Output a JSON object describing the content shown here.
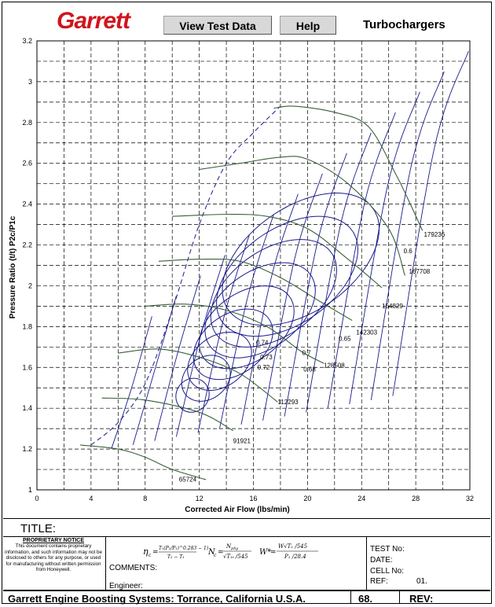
{
  "header": {
    "logo": "Garrett",
    "view_button": "View Test Data",
    "help_button": "Help",
    "product": "Turbochargers"
  },
  "colors": {
    "logo": "#d1141b",
    "speed_lines": "#3a5f3a",
    "efficiency_islands": "#1a1a8c",
    "grid": "#000000"
  },
  "chart_data": {
    "type": "line",
    "title": "",
    "xlabel": "Corrected Air Flow (lbs/min)",
    "ylabel": "Pressure Ratio (t/t) P2c/P1c",
    "xlim": [
      0,
      32
    ],
    "ylim": [
      1,
      3.2
    ],
    "x_ticks": [
      "0",
      "4",
      "8",
      "12",
      "16",
      "20",
      "24",
      "28",
      "32"
    ],
    "y_ticks": [
      "1",
      "1.2",
      "1.4",
      "1.6",
      "1.8",
      "2",
      "2.2",
      "2.4",
      "2.6",
      "2.8",
      "3",
      "3.2"
    ],
    "grid": true,
    "surge_line": [
      [
        4,
        1.22
      ],
      [
        6,
        1.33
      ],
      [
        8,
        1.52
      ],
      [
        10,
        1.88
      ],
      [
        12,
        2.3
      ],
      [
        14,
        2.6
      ],
      [
        16,
        2.75
      ],
      [
        18,
        2.88
      ]
    ],
    "speed_lines": [
      {
        "label": "65724",
        "points": [
          [
            3.2,
            1.22
          ],
          [
            6,
            1.2
          ],
          [
            8,
            1.16
          ],
          [
            10,
            1.1
          ],
          [
            12.5,
            1.05
          ]
        ],
        "label_at": [
          10.5,
          1.04
        ]
      },
      {
        "label": "91921",
        "points": [
          [
            4.8,
            1.45
          ],
          [
            8,
            1.44
          ],
          [
            12,
            1.38
          ],
          [
            14.5,
            1.29
          ]
        ],
        "label_at": [
          14.5,
          1.23
        ]
      },
      {
        "label": "112293",
        "points": [
          [
            6,
            1.67
          ],
          [
            9,
            1.69
          ],
          [
            12,
            1.65
          ],
          [
            15,
            1.57
          ],
          [
            17.8,
            1.43
          ]
        ],
        "label_at": [
          17.8,
          1.42
        ]
      },
      {
        "label": "128508",
        "points": [
          [
            8,
            1.9
          ],
          [
            11,
            1.91
          ],
          [
            14,
            1.88
          ],
          [
            17,
            1.8
          ],
          [
            19.5,
            1.68
          ],
          [
            21.2,
            1.62
          ]
        ],
        "label_at": [
          21.2,
          1.6
        ]
      },
      {
        "label": "142303",
        "points": [
          [
            9,
            2.12
          ],
          [
            12,
            2.13
          ],
          [
            15,
            2.12
          ],
          [
            18,
            2.04
          ],
          [
            21,
            1.92
          ],
          [
            23.3,
            1.83
          ]
        ],
        "label_at": [
          23.6,
          1.76
        ]
      },
      {
        "label": "154829",
        "points": [
          [
            10,
            2.34
          ],
          [
            14,
            2.35
          ],
          [
            17,
            2.34
          ],
          [
            20,
            2.28
          ],
          [
            23,
            2.13
          ],
          [
            25.5,
            1.99
          ]
        ],
        "label_at": [
          25.5,
          1.89
        ]
      },
      {
        "label": "167708",
        "points": [
          [
            12,
            2.57
          ],
          [
            15,
            2.6
          ],
          [
            18,
            2.63
          ],
          [
            20,
            2.62
          ],
          [
            23,
            2.5
          ],
          [
            26,
            2.28
          ],
          [
            27.2,
            2.05
          ]
        ],
        "label_at": [
          27.5,
          2.06
        ]
      },
      {
        "label": "179236",
        "points": [
          [
            17.5,
            2.87
          ],
          [
            19,
            2.88
          ],
          [
            22,
            2.85
          ],
          [
            24.5,
            2.78
          ],
          [
            26.5,
            2.55
          ],
          [
            27.6,
            2.4
          ],
          [
            28.5,
            2.27
          ]
        ],
        "label_at": [
          28.6,
          2.24
        ]
      }
    ],
    "efficiency_islands": [
      {
        "label": "0.74",
        "label_at": [
          16.2,
          1.71
        ]
      },
      {
        "label": "0.73",
        "label_at": [
          16.5,
          1.64
        ]
      },
      {
        "label": "0.72",
        "label_at": [
          16.3,
          1.59
        ]
      },
      {
        "label": "0.7",
        "label_at": [
          19.6,
          1.66
        ]
      },
      {
        "label": "0.68",
        "label_at": [
          19.7,
          1.58
        ]
      },
      {
        "label": "0.65",
        "label_at": [
          22.3,
          1.73
        ]
      },
      {
        "label": "0.6",
        "label_at": [
          27.1,
          2.16
        ]
      }
    ]
  },
  "title_block": {
    "title_label": "TITLE:",
    "proprietary_heading": "PROPRIETARY NOTICE",
    "proprietary_text": "This document contains proprietary information, and such information may not be disclosed to others for any purpose, or used for manufacturing without written permission from Honeywell.",
    "comments": "COMMENTS:",
    "engineer": "Engineer:",
    "test_no": "TEST No:",
    "date": "DATE:",
    "cell_no": "CELL No:",
    "ref": "REF:",
    "ref_value": "01.",
    "company": "Garrett Engine Boosting Systems: Torrance, California U.S.A.",
    "number": "68.",
    "rev": "REV:"
  }
}
